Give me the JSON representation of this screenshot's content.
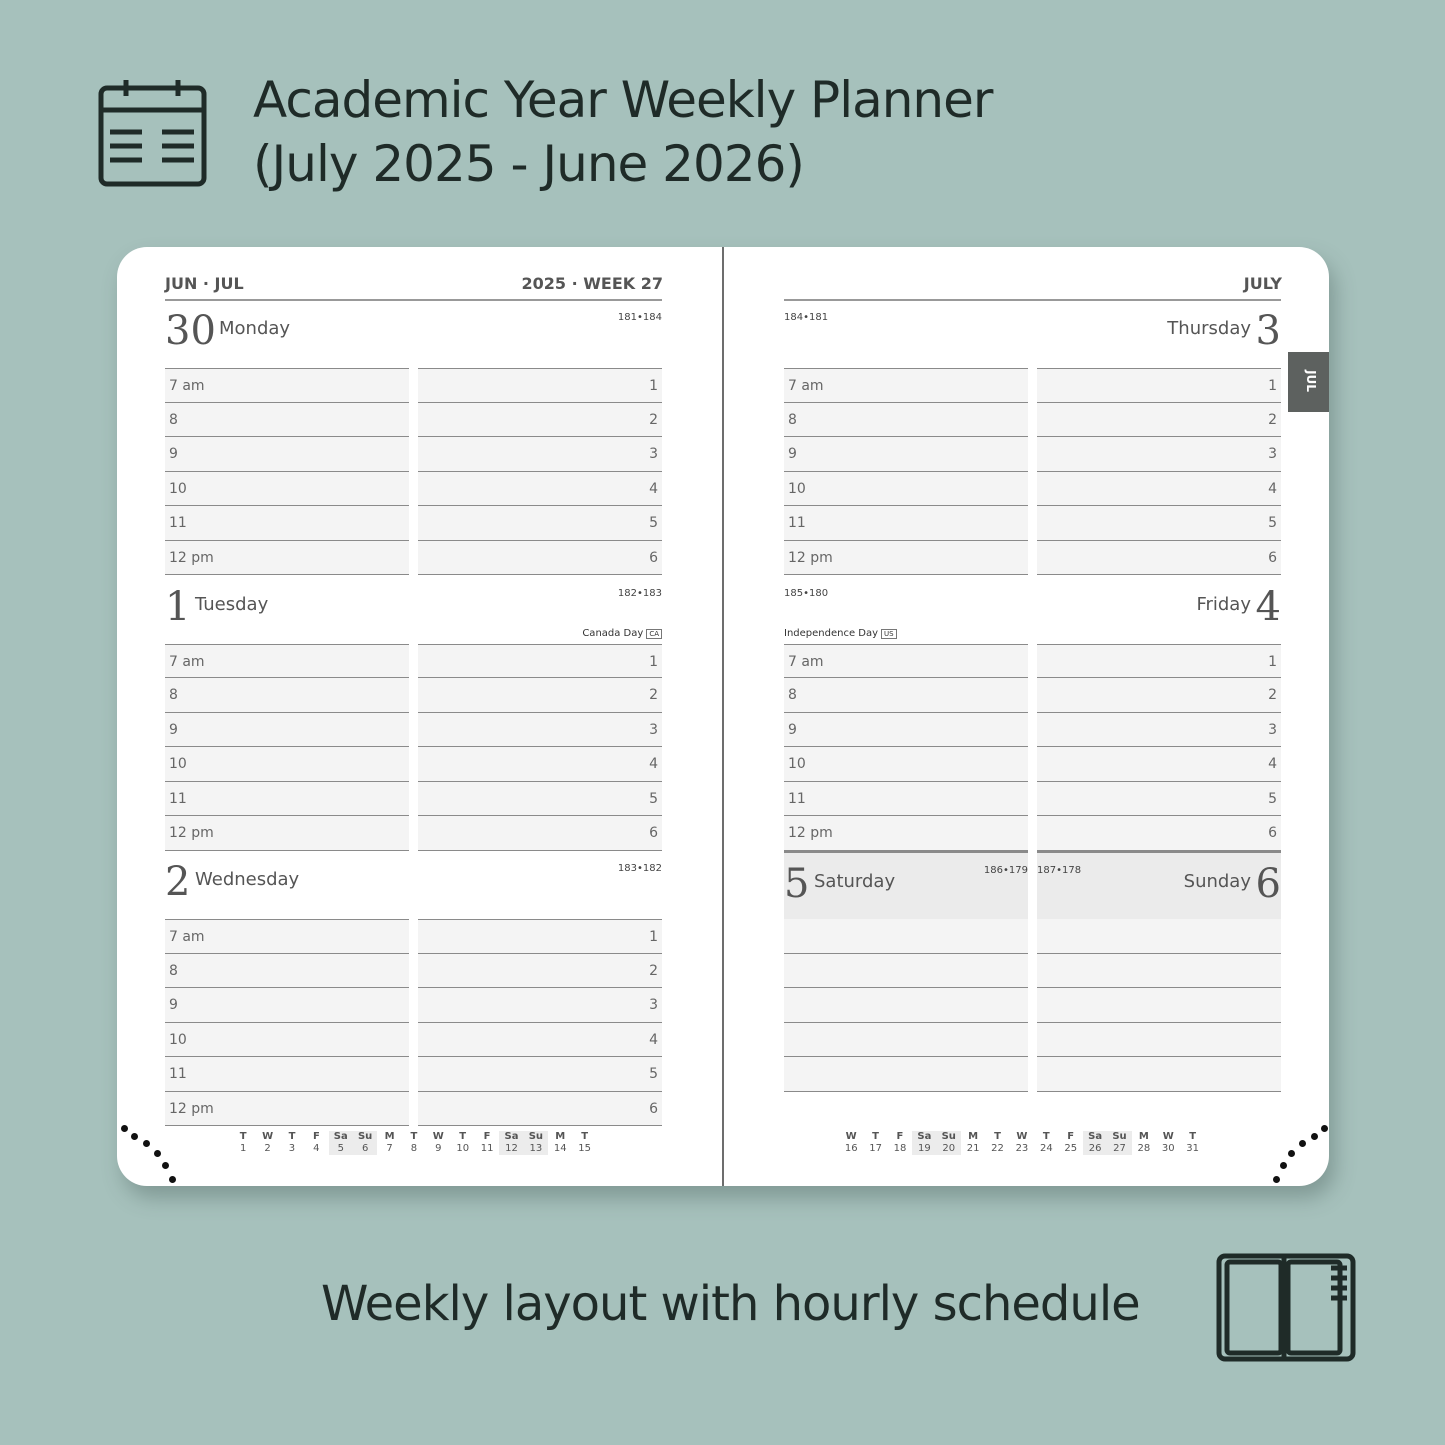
{
  "title": {
    "line1": "Academic Year Weekly Planner",
    "line2": "(July 2025 - June 2026)"
  },
  "subtitle": "Weekly layout with hourly schedule",
  "icons": {
    "top": "calendar-icon",
    "bottom": "planner-book-icon"
  },
  "left_page": {
    "header_left": "JUN · JUL",
    "header_right": "2025 · WEEK 27"
  },
  "right_page": {
    "header_right": "JULY",
    "tab": "JUL"
  },
  "hours_left": [
    "7 am",
    "8",
    "9",
    "10",
    "11",
    "12 pm"
  ],
  "hours_right": [
    "1",
    "2",
    "3",
    "4",
    "5",
    "6"
  ],
  "days": [
    {
      "num": "30",
      "name": "Monday",
      "pages": "181•184",
      "side": "left"
    },
    {
      "num": "1",
      "name": "Tuesday",
      "pages": "182•183",
      "holiday": "Canada Day",
      "badge": "CA",
      "side": "left"
    },
    {
      "num": "2",
      "name": "Wednesday",
      "pages": "183•182",
      "side": "left"
    },
    {
      "num": "3",
      "name": "Thursday",
      "pages": "184•181",
      "side": "right"
    },
    {
      "num": "4",
      "name": "Friday",
      "pages": "185•180",
      "holiday": "Independence Day",
      "badge": "US",
      "side": "right"
    }
  ],
  "weekend": [
    {
      "num": "5",
      "name": "Saturday",
      "pages": "186•179"
    },
    {
      "num": "6",
      "name": "Sunday",
      "pages": "187•178"
    }
  ],
  "mini_left": [
    [
      "T",
      "1"
    ],
    [
      "W",
      "2"
    ],
    [
      "T",
      "3"
    ],
    [
      "F",
      "4"
    ],
    [
      "Sa",
      "5"
    ],
    [
      "Su",
      "6"
    ],
    [
      "M",
      "7"
    ],
    [
      "T",
      "8"
    ],
    [
      "W",
      "9"
    ],
    [
      "T",
      "10"
    ],
    [
      "F",
      "11"
    ],
    [
      "Sa",
      "12"
    ],
    [
      "Su",
      "13"
    ],
    [
      "M",
      "14"
    ],
    [
      "T",
      "15"
    ]
  ],
  "mini_right": [
    [
      "W",
      "16"
    ],
    [
      "T",
      "17"
    ],
    [
      "F",
      "18"
    ],
    [
      "Sa",
      "19"
    ],
    [
      "Su",
      "20"
    ],
    [
      "M",
      "21"
    ],
    [
      "T",
      "22"
    ],
    [
      "W",
      "23"
    ],
    [
      "T",
      "24"
    ],
    [
      "F",
      "25"
    ],
    [
      "Sa",
      "26"
    ],
    [
      "Su",
      "27"
    ],
    [
      "M",
      "28"
    ],
    [
      "W",
      "30"
    ],
    [
      "T",
      "31"
    ]
  ]
}
